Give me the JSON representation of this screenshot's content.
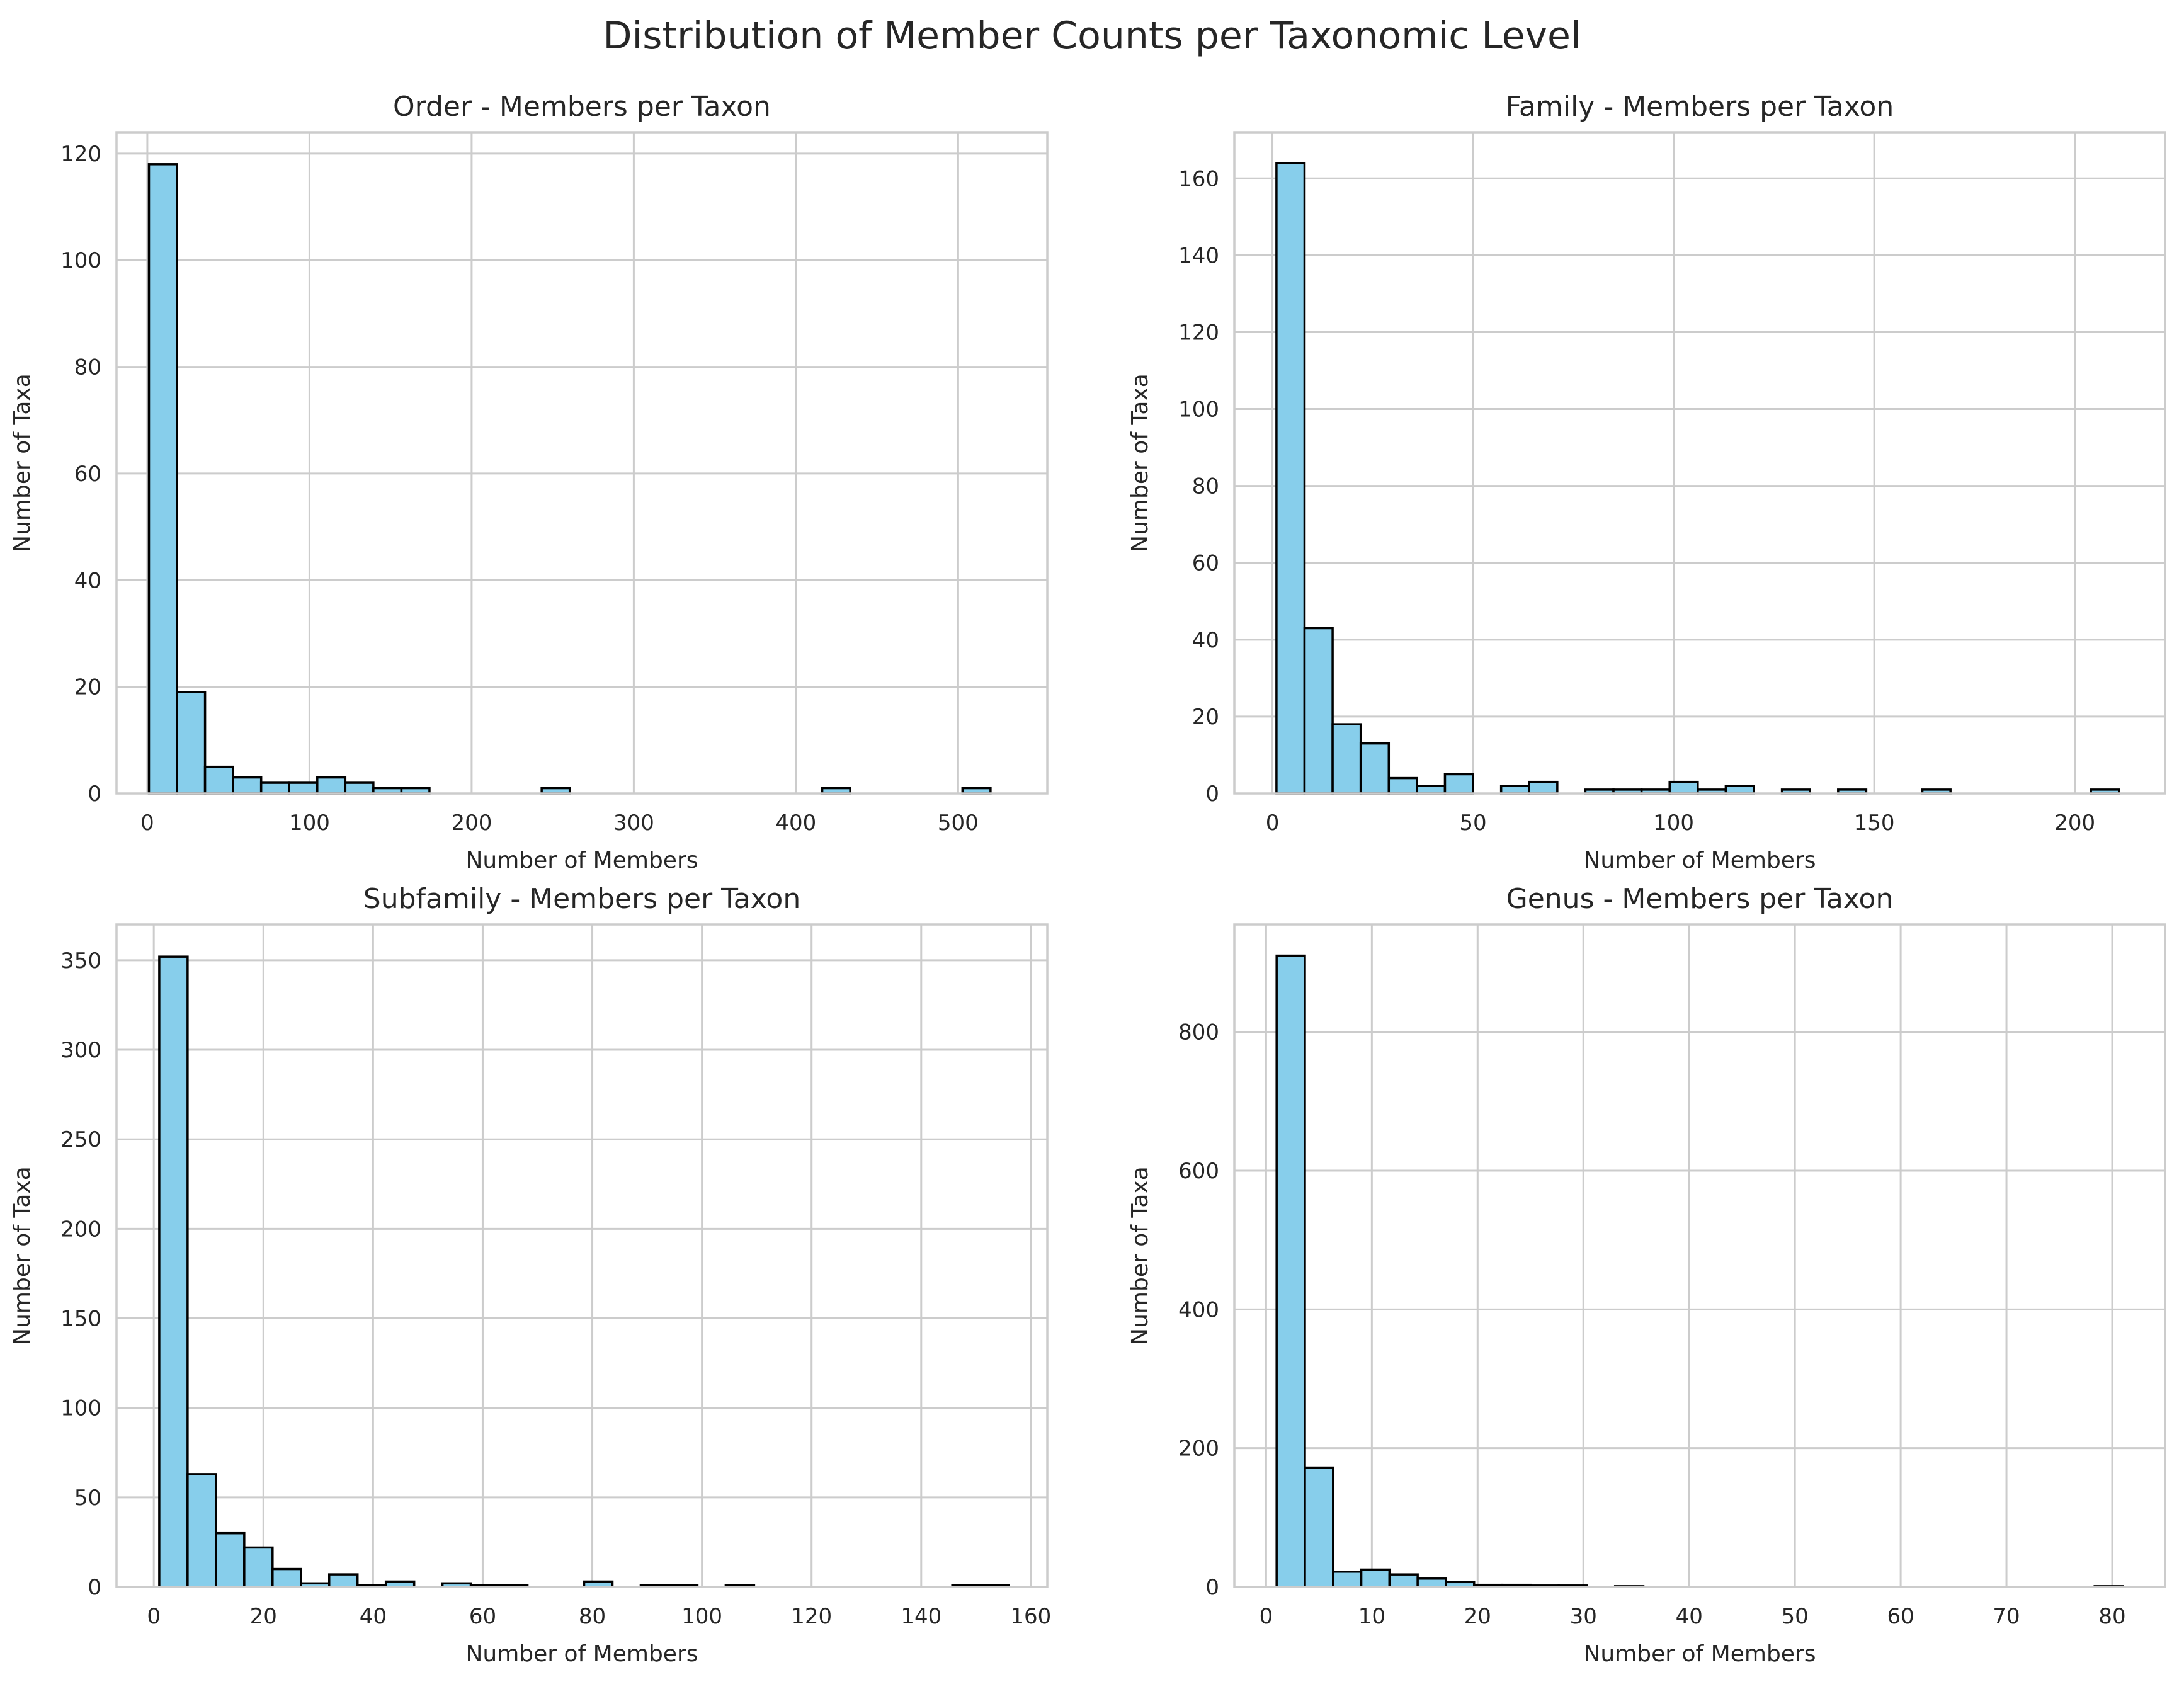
{
  "figure": {
    "title": "Distribution of Member Counts per Taxonomic Level"
  },
  "style": {
    "bar_fill": "#87ceeb",
    "bar_edge": "#000000",
    "grid_color": "#cccccc",
    "axes_edge": "#cccccc",
    "background": "#ffffff"
  },
  "chart_data": [
    {
      "type": "bar",
      "title": "Order - Members per Taxon",
      "xlabel": "Number of Members",
      "ylabel": "Number of Taxa",
      "xlim": [
        -19,
        555
      ],
      "ylim": [
        0,
        124
      ],
      "xticks": [
        0,
        100,
        200,
        300,
        400,
        500
      ],
      "yticks": [
        0,
        20,
        40,
        60,
        80,
        100,
        120
      ],
      "grid": true,
      "bin_start": 1,
      "bin_width": 17.3,
      "values": [
        118,
        19,
        5,
        3,
        2,
        2,
        3,
        2,
        1,
        1,
        0,
        0,
        0,
        0,
        1,
        0,
        0,
        0,
        0,
        0,
        0,
        0,
        0,
        0,
        1,
        0,
        0,
        0,
        0,
        1
      ]
    },
    {
      "type": "bar",
      "title": "Family - Members per Taxon",
      "xlabel": "Number of Members",
      "ylabel": "Number of Taxa",
      "xlim": [
        -9.5,
        222.5
      ],
      "ylim": [
        0,
        172
      ],
      "xticks": [
        0,
        50,
        100,
        150,
        200
      ],
      "yticks": [
        0,
        20,
        40,
        60,
        80,
        100,
        120,
        140,
        160
      ],
      "grid": true,
      "bin_start": 1,
      "bin_width": 7,
      "values": [
        164,
        43,
        18,
        13,
        4,
        2,
        5,
        0,
        2,
        3,
        0,
        1,
        1,
        1,
        3,
        1,
        2,
        0,
        1,
        0,
        1,
        0,
        0,
        1,
        0,
        0,
        0,
        0,
        0,
        1
      ]
    },
    {
      "type": "bar",
      "title": "Subfamily - Members per Taxon",
      "xlabel": "Number of Members",
      "ylabel": "Number of Taxa",
      "xlim": [
        -6.8,
        163
      ],
      "ylim": [
        0,
        370
      ],
      "xticks": [
        0,
        20,
        40,
        60,
        80,
        100,
        120,
        140,
        160
      ],
      "yticks": [
        0,
        50,
        100,
        150,
        200,
        250,
        300,
        350
      ],
      "grid": true,
      "bin_start": 1,
      "bin_width": 5.167,
      "values": [
        352,
        63,
        30,
        22,
        10,
        2,
        7,
        1,
        3,
        0,
        2,
        1,
        1,
        0,
        0,
        3,
        0,
        1,
        1,
        0,
        1,
        0,
        0,
        0,
        0,
        0,
        0,
        0,
        1,
        1
      ]
    },
    {
      "type": "bar",
      "title": "Genus - Members per Taxon",
      "xlabel": "Number of Members",
      "ylabel": "Number of Taxa",
      "xlim": [
        -3,
        85
      ],
      "ylim": [
        0,
        955
      ],
      "xticks": [
        0,
        10,
        20,
        30,
        40,
        50,
        60,
        70,
        80
      ],
      "yticks": [
        0,
        200,
        400,
        600,
        800
      ],
      "grid": true,
      "bin_start": 1,
      "bin_width": 2.667,
      "values": [
        910,
        172,
        22,
        25,
        18,
        12,
        7,
        3,
        3,
        2,
        2,
        0,
        1,
        0,
        0,
        0,
        0,
        0,
        0,
        0,
        0,
        0,
        0,
        0,
        0,
        0,
        0,
        0,
        0,
        1
      ]
    }
  ]
}
